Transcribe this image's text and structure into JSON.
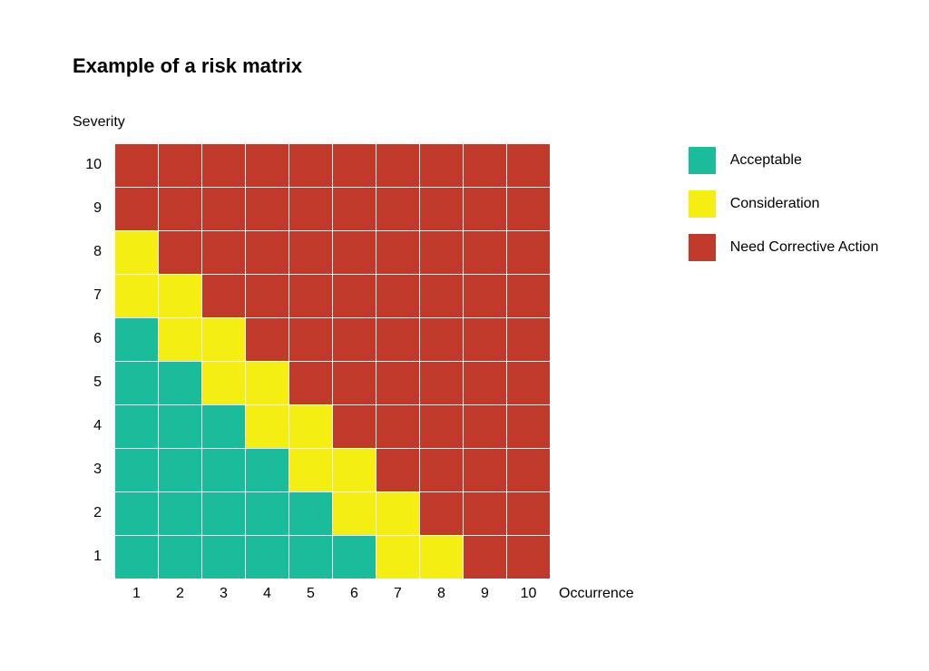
{
  "title": "Example of a risk matrix",
  "title_fontsize": 22,
  "title_fontweight": "700",
  "y_axis_label": "Severity",
  "x_axis_label": "Occurrence",
  "axis_label_fontsize": 16,
  "tick_fontsize": 16,
  "matrix": {
    "type": "heatmap",
    "rows": 10,
    "cols": 10,
    "cell_size": 48,
    "grid_color": "#ffffff",
    "grid_width": 1,
    "background_color": "#ffffff",
    "y_tick_labels": [
      "10",
      "9",
      "8",
      "7",
      "6",
      "5",
      "4",
      "3",
      "2",
      "1"
    ],
    "x_tick_labels": [
      "1",
      "2",
      "3",
      "4",
      "5",
      "6",
      "7",
      "8",
      "9",
      "10"
    ],
    "categories": {
      "A": {
        "label": "Acceptable",
        "color": "#1bbc9b"
      },
      "C": {
        "label": "Consideration",
        "color": "#f4ee13"
      },
      "N": {
        "label": "Need Corrective Action",
        "color": "#c0392b"
      }
    },
    "cells": [
      [
        "N",
        "N",
        "N",
        "N",
        "N",
        "N",
        "N",
        "N",
        "N",
        "N"
      ],
      [
        "N",
        "N",
        "N",
        "N",
        "N",
        "N",
        "N",
        "N",
        "N",
        "N"
      ],
      [
        "C",
        "N",
        "N",
        "N",
        "N",
        "N",
        "N",
        "N",
        "N",
        "N"
      ],
      [
        "C",
        "C",
        "N",
        "N",
        "N",
        "N",
        "N",
        "N",
        "N",
        "N"
      ],
      [
        "A",
        "C",
        "C",
        "N",
        "N",
        "N",
        "N",
        "N",
        "N",
        "N"
      ],
      [
        "A",
        "A",
        "C",
        "C",
        "N",
        "N",
        "N",
        "N",
        "N",
        "N"
      ],
      [
        "A",
        "A",
        "A",
        "C",
        "C",
        "N",
        "N",
        "N",
        "N",
        "N"
      ],
      [
        "A",
        "A",
        "A",
        "A",
        "C",
        "C",
        "N",
        "N",
        "N",
        "N"
      ],
      [
        "A",
        "A",
        "A",
        "A",
        "A",
        "C",
        "C",
        "N",
        "N",
        "N"
      ],
      [
        "A",
        "A",
        "A",
        "A",
        "A",
        "A",
        "C",
        "C",
        "N",
        "N"
      ]
    ]
  },
  "legend": {
    "swatch_size": 30,
    "label_fontsize": 16,
    "items": [
      "A",
      "C",
      "N"
    ]
  }
}
